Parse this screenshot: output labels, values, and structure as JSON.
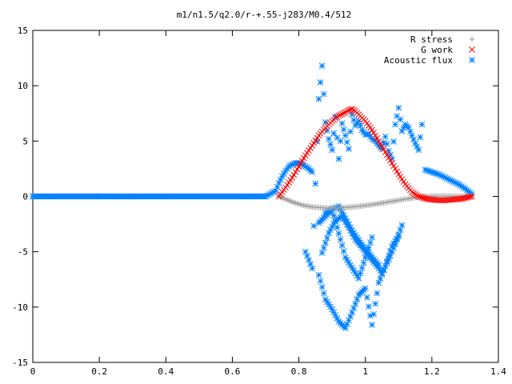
{
  "chart_data": {
    "type": "scatter",
    "title": "m1/n1.5/q2.0/r-+.55-j283/M0.4/512",
    "xlabel": "",
    "ylabel": "",
    "xlim": [
      0,
      1.4
    ],
    "ylim": [
      -15,
      15
    ],
    "x_ticks": [
      "0",
      "0.2",
      "0.4",
      "0.6",
      "0.8",
      "1",
      "1.2",
      "1.4"
    ],
    "y_ticks": [
      "15",
      "10",
      "5",
      "0",
      "-5",
      "-10",
      "-15"
    ],
    "grid": false,
    "legend_position": "top-right",
    "colors": {
      "r_stress": "#a0a0a0",
      "g_work": "#ff0000",
      "acoustic_flux": "#0080ff",
      "axes": "#000000"
    },
    "series": [
      {
        "name": "R stress",
        "marker": "plus",
        "x": [
          0.74,
          0.76,
          0.78,
          0.8,
          0.82,
          0.84,
          0.86,
          0.88,
          0.9,
          0.92,
          0.94,
          0.96,
          0.98,
          1.0,
          1.02,
          1.04,
          1.06,
          1.08,
          1.1,
          1.12,
          1.14,
          1.16,
          1.18,
          1.2,
          1.22,
          1.24,
          1.26,
          1.28,
          1.3,
          1.32
        ],
        "y": [
          0.0,
          -0.25,
          -0.5,
          -0.7,
          -0.85,
          -0.95,
          -1.0,
          -1.05,
          -1.05,
          -1.05,
          -1.0,
          -0.95,
          -0.9,
          -0.82,
          -0.75,
          -0.65,
          -0.55,
          -0.45,
          -0.35,
          -0.25,
          -0.15,
          -0.05,
          0.0,
          0.02,
          0.03,
          0.03,
          0.02,
          0.02,
          0.01,
          0.0
        ]
      },
      {
        "name": "G work",
        "marker": "cross",
        "x": [
          0.74,
          0.76,
          0.78,
          0.8,
          0.82,
          0.84,
          0.86,
          0.88,
          0.9,
          0.92,
          0.94,
          0.95,
          0.96,
          0.97,
          0.98,
          1.0,
          1.02,
          1.04,
          1.06,
          1.08,
          1.1,
          1.12,
          1.14,
          1.16,
          1.18,
          1.2,
          1.22,
          1.24,
          1.26,
          1.28,
          1.3,
          1.32
        ],
        "y": [
          0.0,
          0.8,
          1.7,
          2.7,
          3.7,
          4.6,
          5.5,
          6.2,
          6.8,
          7.3,
          7.6,
          7.8,
          7.9,
          7.7,
          7.4,
          6.8,
          6.0,
          5.0,
          4.0,
          3.0,
          2.0,
          1.1,
          0.4,
          0.0,
          -0.2,
          -0.3,
          -0.35,
          -0.35,
          -0.3,
          -0.25,
          -0.15,
          0.0
        ]
      },
      {
        "name": "Acoustic flux",
        "marker": "star",
        "x": [
          0.0,
          0.1,
          0.2,
          0.3,
          0.4,
          0.5,
          0.6,
          0.7,
          0.73,
          0.74,
          0.75,
          0.76,
          0.77,
          0.78,
          0.79,
          0.8,
          0.81,
          0.82,
          0.83,
          0.84,
          1.18,
          1.19,
          1.2,
          1.22,
          1.24,
          1.26,
          1.28,
          1.3,
          1.32,
          0.82,
          0.84,
          0.86,
          0.87,
          0.88,
          0.89,
          0.9,
          0.91,
          0.92,
          0.93,
          0.94,
          0.95,
          0.96,
          0.97,
          0.98,
          0.99,
          1.0,
          1.01,
          1.02,
          1.03,
          1.04,
          1.05,
          1.06,
          1.07,
          1.08,
          1.09,
          1.1,
          1.11,
          1.12,
          1.13,
          1.14,
          1.15,
          1.16,
          1.17,
          0.86,
          0.88,
          0.9,
          0.92,
          0.94,
          0.96,
          0.98,
          1.0,
          1.02,
          1.04,
          1.06,
          1.08,
          1.1,
          0.87,
          0.89,
          0.91,
          0.93,
          0.95,
          0.97,
          0.99,
          1.01,
          1.03,
          1.05,
          1.07,
          1.09,
          1.11,
          0.88,
          0.92,
          0.96,
          1.0,
          1.04,
          0.86,
          0.9,
          0.94,
          0.98,
          1.02
        ],
        "y": [
          0,
          0,
          0,
          0,
          0,
          0,
          0,
          0,
          0.5,
          1.2,
          1.8,
          2.3,
          2.7,
          2.9,
          3.0,
          3.0,
          2.9,
          2.7,
          2.5,
          2.2,
          2.4,
          2.3,
          2.2,
          2.0,
          1.7,
          1.4,
          1.1,
          0.7,
          0.2,
          -5.0,
          -6.5,
          8.8,
          11.8,
          6.7,
          5.2,
          4.2,
          7.2,
          3.4,
          6.6,
          5.5,
          4.3,
          7.4,
          6.4,
          6.8,
          6.0,
          5.6,
          5.6,
          5.2,
          5.0,
          4.6,
          4.3,
          5.4,
          4.1,
          3.4,
          6.5,
          8.0,
          5.9,
          6.5,
          6.2,
          5.5,
          4.8,
          4.2,
          6.5,
          -7.1,
          -9.3,
          -10.2,
          -11.3,
          -11.9,
          -10.5,
          -8.9,
          -8.3,
          -11.6,
          -7.8,
          -6.3,
          -4.5,
          -3.6,
          -5.1,
          -3.3,
          -2.2,
          -1.8,
          -2.8,
          -3.9,
          -4.6,
          -5.4,
          -6.1,
          -6.9,
          -5.7,
          -4.3,
          -2.6,
          -1.5,
          -0.9,
          -3.1,
          -4.8,
          -6.2,
          -2.4,
          -1.2,
          -5.5,
          -7.4,
          -3.7
        ]
      }
    ]
  }
}
